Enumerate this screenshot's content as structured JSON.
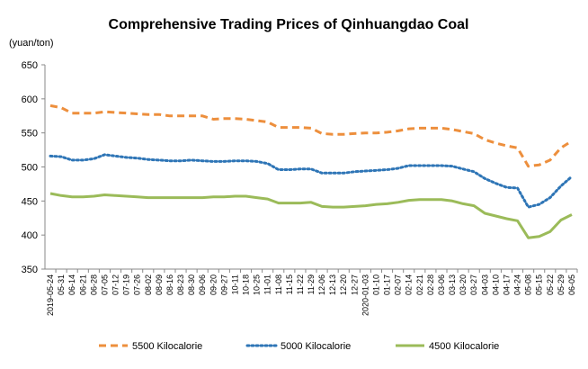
{
  "chart_data": {
    "type": "line",
    "title": "Comprehensive Trading Prices of Qinhuangdao Coal",
    "ylabel": "(yuan/ton)",
    "xlabel": "",
    "ylim": [
      350,
      650
    ],
    "yticks": [
      350,
      400,
      450,
      500,
      550,
      600,
      650
    ],
    "grid": false,
    "legend": "bottom",
    "x": [
      "2019-05-24",
      "05-31",
      "06-14",
      "06-21",
      "06-28",
      "07-05",
      "07-12",
      "07-19",
      "07-26",
      "08-02",
      "08-09",
      "08-16",
      "08-23",
      "08-30",
      "09-06",
      "09-20",
      "09-27",
      "10-11",
      "10-18",
      "10-25",
      "11-01",
      "11-08",
      "11-15",
      "11-22",
      "11-29",
      "12-06",
      "12-13",
      "12-20",
      "12-27",
      "2020-01-03",
      "01-10",
      "01-17",
      "02-07",
      "02-14",
      "02-21",
      "02-28",
      "03-06",
      "03-13",
      "03-20",
      "03-27",
      "04-03",
      "04-10",
      "04-17",
      "04-24",
      "05-08",
      "05-15",
      "05-22",
      "05-29",
      "06-05"
    ],
    "series": [
      {
        "name": "5500 Kilocalorie",
        "color": "#ED8F3D",
        "dash": "dashed",
        "values": [
          590,
          587,
          579,
          579,
          579,
          581,
          580,
          579,
          578,
          577,
          577,
          575,
          575,
          575,
          575,
          570,
          571,
          571,
          570,
          568,
          566,
          558,
          558,
          558,
          557,
          549,
          548,
          548,
          549,
          550,
          550,
          551,
          553,
          556,
          557,
          557,
          557,
          555,
          552,
          549,
          540,
          535,
          531,
          528,
          501,
          503,
          510,
          528,
          538
        ]
      },
      {
        "name": "5000 Kilocalorie",
        "color": "#2E75B6",
        "dash": "dotted",
        "values": [
          516,
          515,
          510,
          510,
          512,
          518,
          516,
          514,
          513,
          511,
          510,
          509,
          509,
          510,
          509,
          508,
          508,
          509,
          509,
          508,
          505,
          496,
          496,
          497,
          497,
          491,
          491,
          491,
          493,
          494,
          495,
          496,
          498,
          502,
          502,
          502,
          502,
          501,
          497,
          493,
          483,
          476,
          470,
          469,
          441,
          445,
          455,
          472,
          486
        ]
      },
      {
        "name": "4500 Kilocalorie",
        "color": "#9BBB59",
        "dash": "solid",
        "values": [
          461,
          458,
          456,
          456,
          457,
          459,
          458,
          457,
          456,
          455,
          455,
          455,
          455,
          455,
          455,
          456,
          456,
          457,
          457,
          455,
          453,
          447,
          447,
          447,
          448,
          442,
          441,
          441,
          442,
          443,
          445,
          446,
          448,
          451,
          452,
          452,
          452,
          450,
          446,
          443,
          432,
          428,
          424,
          421,
          396,
          398,
          405,
          422,
          430
        ]
      }
    ]
  }
}
